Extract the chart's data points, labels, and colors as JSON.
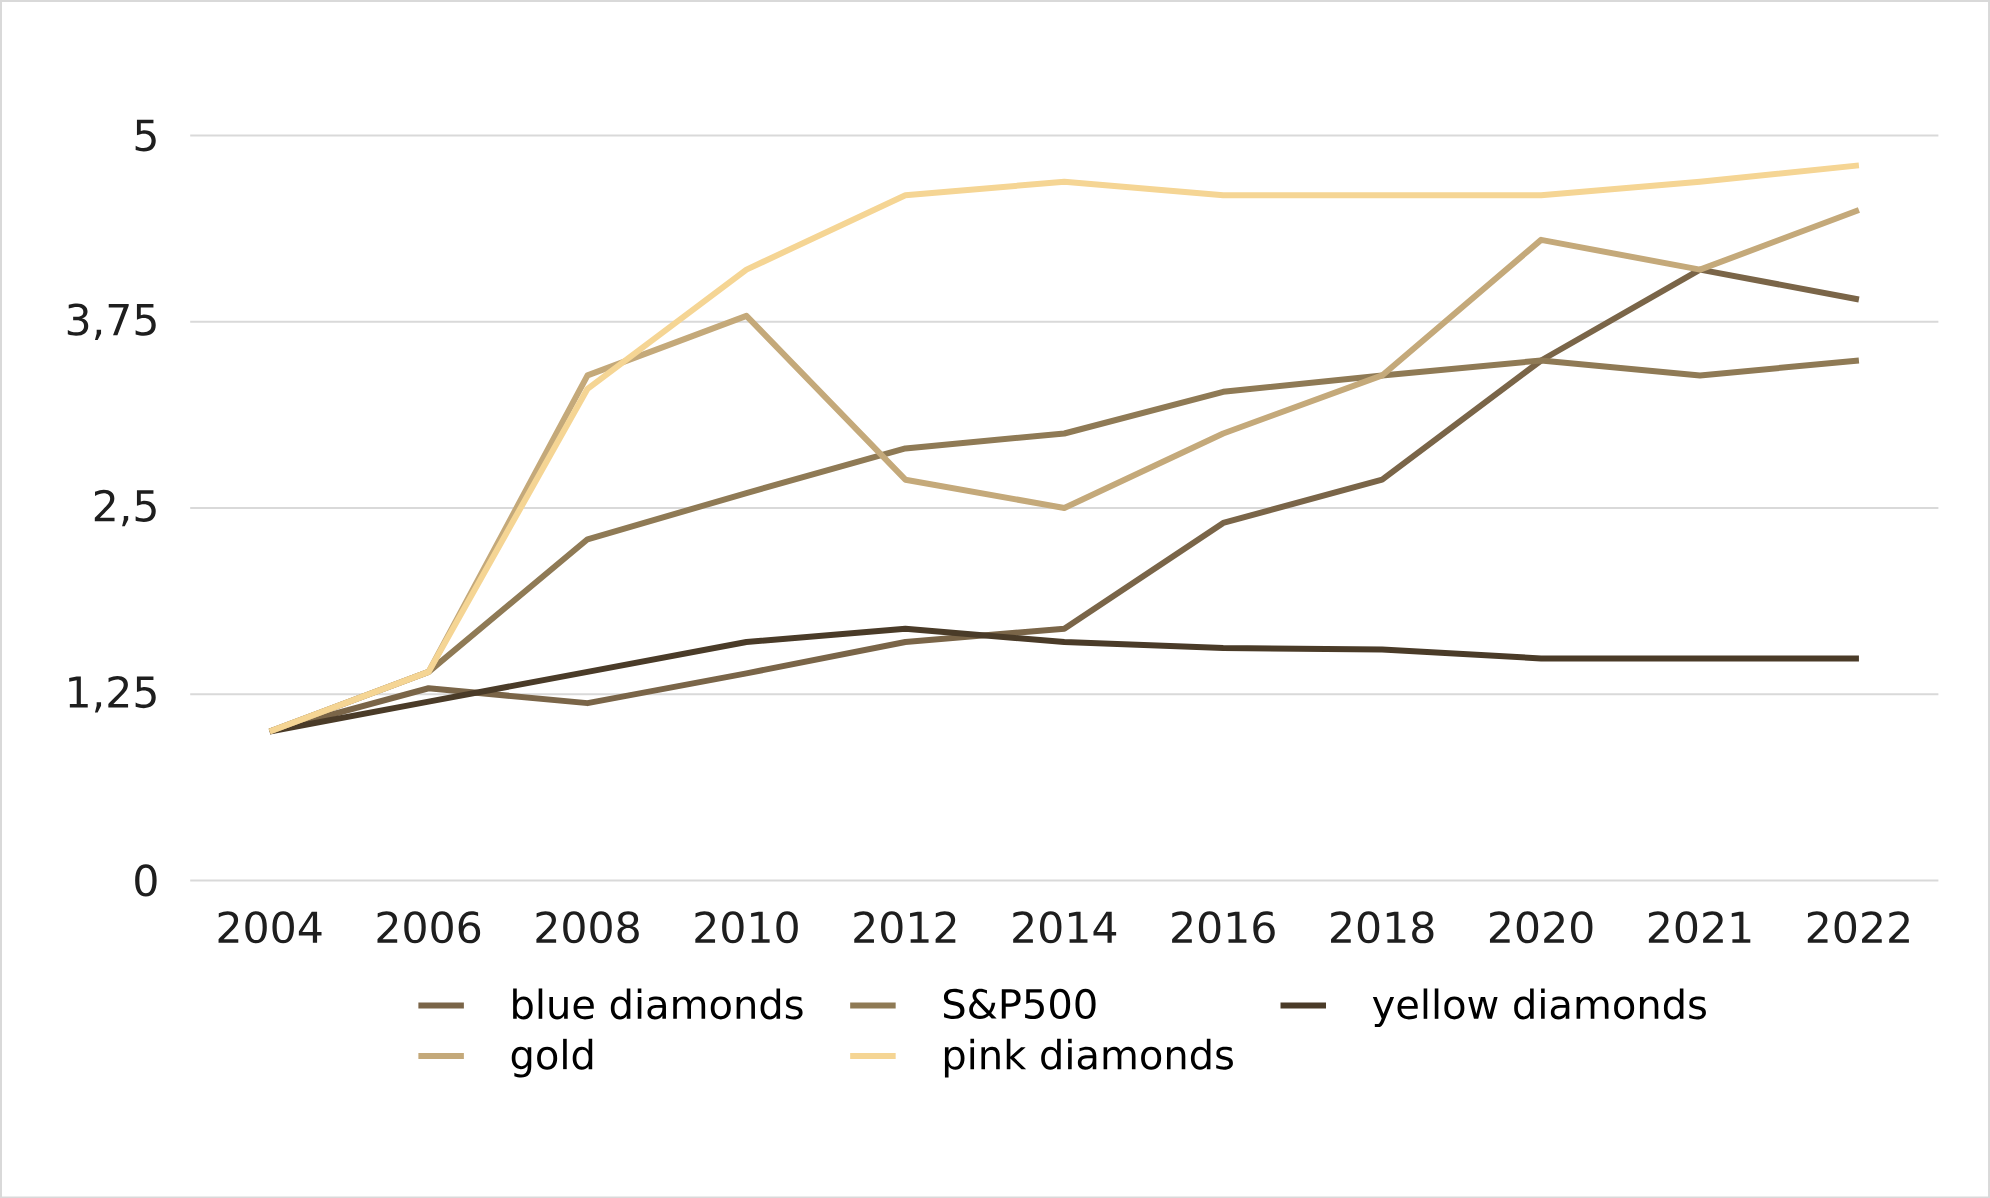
{
  "chart_data": {
    "type": "line",
    "categories": [
      "2004",
      "2006",
      "2008",
      "2010",
      "2012",
      "2014",
      "2016",
      "2018",
      "2020",
      "2021",
      "2022"
    ],
    "series": [
      {
        "name": "blue diamonds",
        "color": "#7a6548",
        "values": [
          1,
          1.29,
          1.19,
          1.39,
          1.6,
          1.69,
          2.4,
          2.69,
          3.49,
          4.1,
          3.9
        ]
      },
      {
        "name": "S&P500",
        "color": "#8f7a55",
        "values": [
          1,
          1.4,
          2.29,
          2.6,
          2.9,
          3.0,
          3.28,
          3.39,
          3.49,
          3.39,
          3.49
        ]
      },
      {
        "name": "yellow diamonds",
        "color": "#4a3b28",
        "values": [
          1,
          1.2,
          1.4,
          1.6,
          1.69,
          1.6,
          1.56,
          1.55,
          1.49,
          1.49,
          1.49
        ]
      },
      {
        "name": "gold",
        "color": "#c4a97a",
        "values": [
          1,
          1.4,
          3.39,
          3.79,
          2.69,
          2.5,
          3.0,
          3.39,
          4.3,
          4.1,
          4.5
        ]
      },
      {
        "name": "pink diamonds",
        "color": "#f5d594",
        "values": [
          1,
          1.4,
          3.3,
          4.1,
          4.6,
          4.69,
          4.6,
          4.6,
          4.6,
          4.69,
          4.8
        ]
      }
    ],
    "ylim": [
      0,
      5
    ],
    "yticks": [
      0,
      {
        "value": 1.25,
        "label": "1,25"
      },
      {
        "value": 2.5,
        "label": "2,5"
      },
      {
        "value": 3.75,
        "label": "3,75"
      },
      5
    ],
    "grid": "y",
    "legend": "bottom",
    "marker": "none",
    "line_style": "solid"
  }
}
